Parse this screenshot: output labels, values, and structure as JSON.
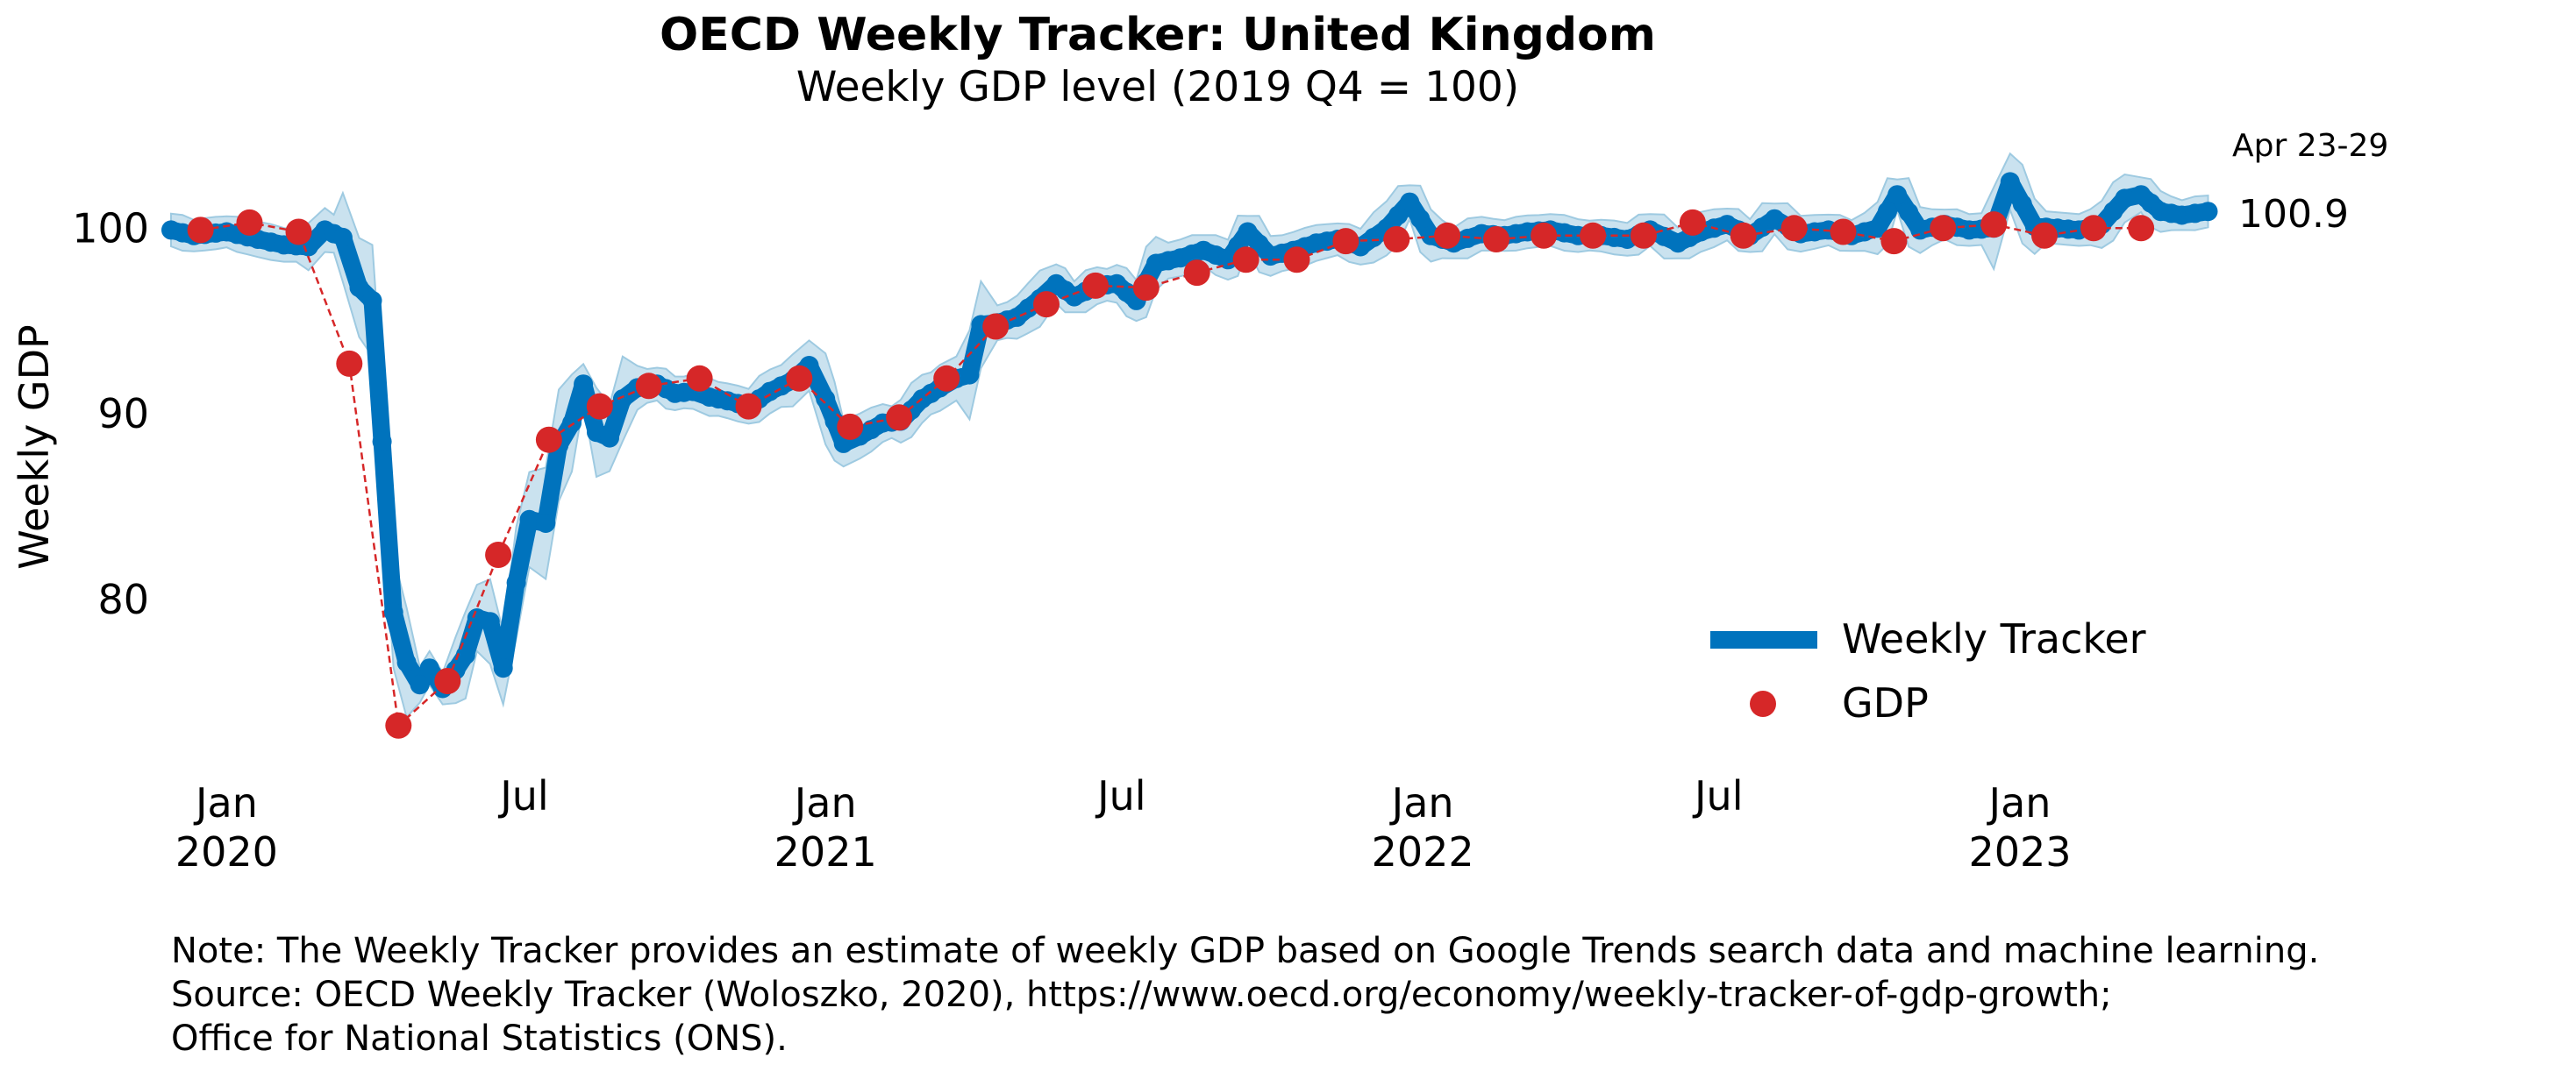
{
  "chart_data": {
    "type": "line",
    "title": "OECD Weekly Tracker: United Kingdom",
    "subtitle": "Weekly GDP level (2019 Q4 = 100)",
    "xlabel": "",
    "ylabel": "Weekly GDP",
    "xlim": [
      "2019-11-28",
      "2023-04-30"
    ],
    "ylim": [
      70.5,
      104.5
    ],
    "grid": false,
    "legend_position": "lower-right",
    "yticks": [
      {
        "value": 80,
        "label": "80"
      },
      {
        "value": 90,
        "label": "90"
      },
      {
        "value": 100,
        "label": "100"
      }
    ],
    "xticks": [
      {
        "date": "2020-01-01",
        "label": "Jan",
        "year": "2020"
      },
      {
        "date": "2020-07-01",
        "label": "Jul",
        "year": ""
      },
      {
        "date": "2021-01-01",
        "label": "Jan",
        "year": "2021"
      },
      {
        "date": "2021-07-01",
        "label": "Jul",
        "year": ""
      },
      {
        "date": "2022-01-01",
        "label": "Jan",
        "year": "2022"
      },
      {
        "date": "2022-07-01",
        "label": "Jul",
        "year": ""
      },
      {
        "date": "2023-01-01",
        "label": "Jan",
        "year": "2023"
      }
    ],
    "series": [
      {
        "name": "Weekly Tracker",
        "color": "#0073bd",
        "band_color": "#9ecae1",
        "points": [
          [
            "2019-11-28",
            99.9
          ],
          [
            "2019-12-12",
            99.6
          ],
          [
            "2020-01-01",
            99.8
          ],
          [
            "2020-01-20",
            99.4
          ],
          [
            "2020-02-05",
            99.1
          ],
          [
            "2020-02-20",
            99.0
          ],
          [
            "2020-03-01",
            99.9
          ],
          [
            "2020-03-12",
            99.5
          ],
          [
            "2020-03-22",
            96.8
          ],
          [
            "2020-03-30",
            96.1
          ],
          [
            "2020-04-05",
            88.5
          ],
          [
            "2020-04-12",
            79.3
          ],
          [
            "2020-04-20",
            76.6
          ],
          [
            "2020-04-28",
            75.4
          ],
          [
            "2020-05-04",
            76.3
          ],
          [
            "2020-05-12",
            75.2
          ],
          [
            "2020-05-20",
            76.2
          ],
          [
            "2020-05-26",
            77.0
          ],
          [
            "2020-06-02",
            79.0
          ],
          [
            "2020-06-10",
            78.8
          ],
          [
            "2020-06-18",
            76.3
          ],
          [
            "2020-06-26",
            80.9
          ],
          [
            "2020-07-04",
            84.3
          ],
          [
            "2020-07-14",
            84.1
          ],
          [
            "2020-07-22",
            88.3
          ],
          [
            "2020-07-30",
            89.5
          ],
          [
            "2020-08-06",
            91.6
          ],
          [
            "2020-08-14",
            89.0
          ],
          [
            "2020-08-22",
            88.7
          ],
          [
            "2020-08-30",
            90.8
          ],
          [
            "2020-09-08",
            91.4
          ],
          [
            "2020-09-20",
            91.6
          ],
          [
            "2020-10-01",
            91.1
          ],
          [
            "2020-10-12",
            91.2
          ],
          [
            "2020-10-22",
            90.9
          ],
          [
            "2020-11-02",
            90.7
          ],
          [
            "2020-11-15",
            90.4
          ],
          [
            "2020-11-28",
            91.2
          ],
          [
            "2020-12-12",
            91.8
          ],
          [
            "2020-12-22",
            92.6
          ],
          [
            "2021-01-01",
            90.8
          ],
          [
            "2021-01-12",
            88.4
          ],
          [
            "2021-01-22",
            88.8
          ],
          [
            "2021-02-05",
            89.5
          ],
          [
            "2021-02-16",
            89.6
          ],
          [
            "2021-03-01",
            90.8
          ],
          [
            "2021-03-12",
            91.4
          ],
          [
            "2021-03-22",
            91.9
          ],
          [
            "2021-03-30",
            92.1
          ],
          [
            "2021-04-06",
            94.8
          ],
          [
            "2021-04-16",
            94.9
          ],
          [
            "2021-04-28",
            95.2
          ],
          [
            "2021-05-12",
            96.2
          ],
          [
            "2021-05-22",
            97.0
          ],
          [
            "2021-06-02",
            96.3
          ],
          [
            "2021-06-16",
            96.9
          ],
          [
            "2021-06-28",
            97.0
          ],
          [
            "2021-07-10",
            96.1
          ],
          [
            "2021-07-22",
            98.1
          ],
          [
            "2021-08-06",
            98.4
          ],
          [
            "2021-08-20",
            98.8
          ],
          [
            "2021-09-04",
            98.3
          ],
          [
            "2021-09-16",
            99.8
          ],
          [
            "2021-09-30",
            98.5
          ],
          [
            "2021-10-14",
            98.8
          ],
          [
            "2021-10-28",
            99.2
          ],
          [
            "2021-11-10",
            99.4
          ],
          [
            "2021-11-24",
            99.0
          ],
          [
            "2021-12-10",
            100.0
          ],
          [
            "2021-12-24",
            101.4
          ],
          [
            "2022-01-06",
            99.6
          ],
          [
            "2022-01-20",
            99.2
          ],
          [
            "2022-02-06",
            99.7
          ],
          [
            "2022-02-20",
            99.6
          ],
          [
            "2022-03-06",
            99.8
          ],
          [
            "2022-03-20",
            99.9
          ],
          [
            "2022-04-06",
            99.6
          ],
          [
            "2022-04-20",
            99.6
          ],
          [
            "2022-05-06",
            99.4
          ],
          [
            "2022-05-20",
            99.9
          ],
          [
            "2022-06-06",
            99.2
          ],
          [
            "2022-06-20",
            99.8
          ],
          [
            "2022-07-06",
            100.2
          ],
          [
            "2022-07-20",
            99.6
          ],
          [
            "2022-08-04",
            100.5
          ],
          [
            "2022-08-20",
            99.7
          ],
          [
            "2022-09-06",
            99.9
          ],
          [
            "2022-09-20",
            99.6
          ],
          [
            "2022-10-06",
            100.0
          ],
          [
            "2022-10-18",
            101.8
          ],
          [
            "2022-11-01",
            99.9
          ],
          [
            "2022-11-16",
            100.2
          ],
          [
            "2022-12-01",
            99.9
          ],
          [
            "2022-12-16",
            100.0
          ],
          [
            "2022-12-26",
            102.5
          ],
          [
            "2023-01-10",
            100.1
          ],
          [
            "2023-01-24",
            100.0
          ],
          [
            "2023-02-06",
            99.9
          ],
          [
            "2023-02-20",
            100.2
          ],
          [
            "2023-03-06",
            101.6
          ],
          [
            "2023-03-16",
            101.8
          ],
          [
            "2023-03-28",
            100.9
          ],
          [
            "2023-04-10",
            100.7
          ],
          [
            "2023-04-26",
            100.9
          ]
        ]
      },
      {
        "name": "GDP",
        "color": "#d62728",
        "points": [
          [
            "2019-12-16",
            99.9
          ],
          [
            "2020-01-15",
            100.3
          ],
          [
            "2020-02-14",
            99.8
          ],
          [
            "2020-03-16",
            92.7
          ],
          [
            "2020-04-15",
            73.2
          ],
          [
            "2020-05-15",
            75.6
          ],
          [
            "2020-06-15",
            82.4
          ],
          [
            "2020-07-16",
            88.6
          ],
          [
            "2020-08-16",
            90.4
          ],
          [
            "2020-09-15",
            91.5
          ],
          [
            "2020-10-16",
            91.9
          ],
          [
            "2020-11-15",
            90.4
          ],
          [
            "2020-12-16",
            91.9
          ],
          [
            "2021-01-16",
            89.3
          ],
          [
            "2021-02-15",
            89.8
          ],
          [
            "2021-03-16",
            91.9
          ],
          [
            "2021-04-15",
            94.7
          ],
          [
            "2021-05-16",
            95.9
          ],
          [
            "2021-06-15",
            96.9
          ],
          [
            "2021-07-16",
            96.8
          ],
          [
            "2021-08-16",
            97.6
          ],
          [
            "2021-09-15",
            98.3
          ],
          [
            "2021-10-16",
            98.3
          ],
          [
            "2021-11-15",
            99.3
          ],
          [
            "2021-12-16",
            99.4
          ],
          [
            "2022-01-16",
            99.6
          ],
          [
            "2022-02-15",
            99.4
          ],
          [
            "2022-03-16",
            99.6
          ],
          [
            "2022-04-15",
            99.6
          ],
          [
            "2022-05-16",
            99.6
          ],
          [
            "2022-06-15",
            100.3
          ],
          [
            "2022-07-16",
            99.6
          ],
          [
            "2022-08-16",
            100.0
          ],
          [
            "2022-09-15",
            99.8
          ],
          [
            "2022-10-16",
            99.3
          ],
          [
            "2022-11-15",
            100.0
          ],
          [
            "2022-12-16",
            100.2
          ],
          [
            "2023-01-16",
            99.6
          ],
          [
            "2023-02-15",
            100.0
          ],
          [
            "2023-03-16",
            100.0
          ]
        ]
      }
    ],
    "annotations": [
      {
        "text": "Apr 23-29"
      },
      {
        "text": "100.9"
      }
    ]
  },
  "notes": {
    "line1": "Note: The Weekly Tracker provides an estimate of weekly GDP based on Google Trends search data and machine learning.",
    "line2": "Source: OECD Weekly Tracker (Woloszko, 2020), https://www.oecd.org/economy/weekly-tracker-of-gdp-growth;",
    "line3": "Office for National Statistics (ONS)."
  }
}
